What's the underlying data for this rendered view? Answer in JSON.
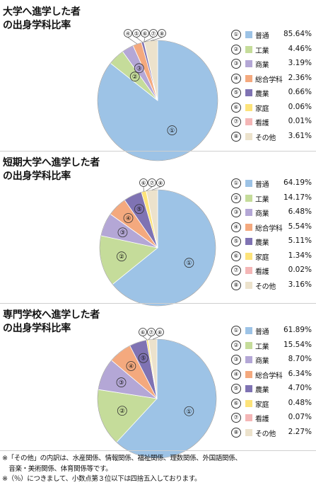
{
  "chart_data": [
    {
      "type": "pie",
      "title": "大学へ進学した者の出身学科比率",
      "title_lines": [
        "大学へ進学した者",
        "の出身学科比率"
      ],
      "categories": [
        "普通",
        "工業",
        "商業",
        "総合学科",
        "農業",
        "家庭",
        "看護",
        "その他"
      ],
      "markers": [
        "①",
        "②",
        "③",
        "④",
        "⑤",
        "⑥",
        "⑦",
        "⑧"
      ],
      "values": [
        85.64,
        4.46,
        3.19,
        2.36,
        0.66,
        0.06,
        0.01,
        3.61
      ],
      "value_labels": [
        "85.64%",
        "4.46%",
        "3.19%",
        "2.36%",
        "0.66%",
        "0.06%",
        "0.01%",
        "3.61%"
      ]
    },
    {
      "type": "pie",
      "title": "短期大学へ進学した者の出身学科比率",
      "title_lines": [
        "短期大学へ進学した者",
        "の出身学科比率"
      ],
      "categories": [
        "普通",
        "工業",
        "商業",
        "総合学科",
        "農業",
        "家庭",
        "看護",
        "その他"
      ],
      "markers": [
        "①",
        "②",
        "③",
        "④",
        "⑤",
        "⑥",
        "⑦",
        "⑧"
      ],
      "values": [
        64.19,
        14.17,
        6.48,
        5.54,
        5.11,
        1.34,
        0.02,
        3.16
      ],
      "value_labels": [
        "64.19%",
        "14.17%",
        "6.48%",
        "5.54%",
        "5.11%",
        "1.34%",
        "0.02%",
        "3.16%"
      ]
    },
    {
      "type": "pie",
      "title": "専門学校へ進学した者の出身学科比率",
      "title_lines": [
        "専門学校へ進学した者",
        "の出身学科比率"
      ],
      "categories": [
        "普通",
        "工業",
        "商業",
        "総合学科",
        "農業",
        "家庭",
        "看護",
        "その他"
      ],
      "markers": [
        "①",
        "②",
        "③",
        "④",
        "⑤",
        "⑥",
        "⑦",
        "⑧"
      ],
      "values": [
        61.89,
        15.54,
        8.7,
        6.34,
        4.7,
        0.48,
        0.07,
        2.27
      ],
      "value_labels": [
        "61.89%",
        "15.54%",
        "8.70%",
        "6.34%",
        "4.70%",
        "0.48%",
        "0.07%",
        "2.27%"
      ]
    }
  ],
  "colors": [
    "#9dc3e6",
    "#c5dc9a",
    "#b4a7d6",
    "#f4a97e",
    "#7f73b3",
    "#fde37a",
    "#f4b6b6",
    "#ece2cc"
  ],
  "notes": [
    "※「その他」の内訳は、水産関係、情報関係、福祉関係、理数関係、外国語関係、",
    "　音楽・美術関係、体育関係等です。",
    "※（％）につきまして、小数点第３位以下は四捨五入しております。"
  ]
}
